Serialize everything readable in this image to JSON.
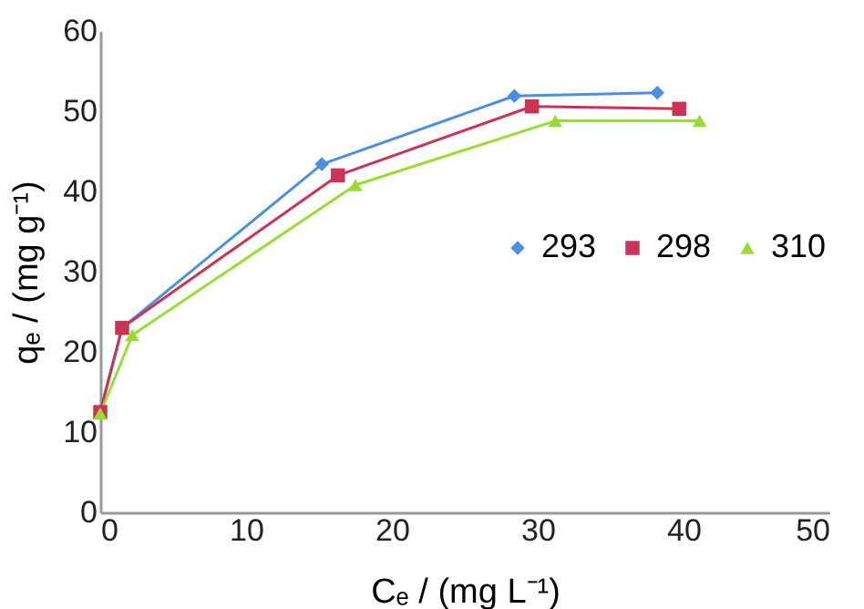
{
  "chart_data": {
    "type": "line",
    "xlabel": "Cₑ / (mg L⁻¹)",
    "ylabel": "qₑ / (mg g⁻¹)",
    "series": [
      {
        "name": "293",
        "color": "#4a8fe0",
        "marker": "diamond",
        "x": [
          0,
          1.5,
          15.2,
          28.4,
          38.2
        ],
        "values": [
          12.6,
          23.0,
          43.4,
          51.9,
          52.3
        ]
      },
      {
        "name": "298",
        "color": "#cc3355",
        "marker": "square",
        "x": [
          0,
          1.5,
          16.3,
          29.6,
          39.7
        ],
        "values": [
          12.5,
          23.0,
          42.0,
          50.6,
          50.3
        ]
      },
      {
        "name": "310",
        "color": "#99dd33",
        "marker": "triangle",
        "x": [
          0,
          2.2,
          17.5,
          31.2,
          41.1
        ],
        "values": [
          12.3,
          22.1,
          40.8,
          48.8,
          48.8
        ]
      }
    ],
    "xlim": [
      0,
      50
    ],
    "xticks": [
      0,
      10,
      20,
      30,
      40,
      50
    ],
    "ylim": [
      0,
      60
    ],
    "yticks": [
      0,
      10,
      20,
      30,
      40,
      50,
      60
    ],
    "grid": false,
    "legend": "right",
    "line_style": "solid"
  }
}
